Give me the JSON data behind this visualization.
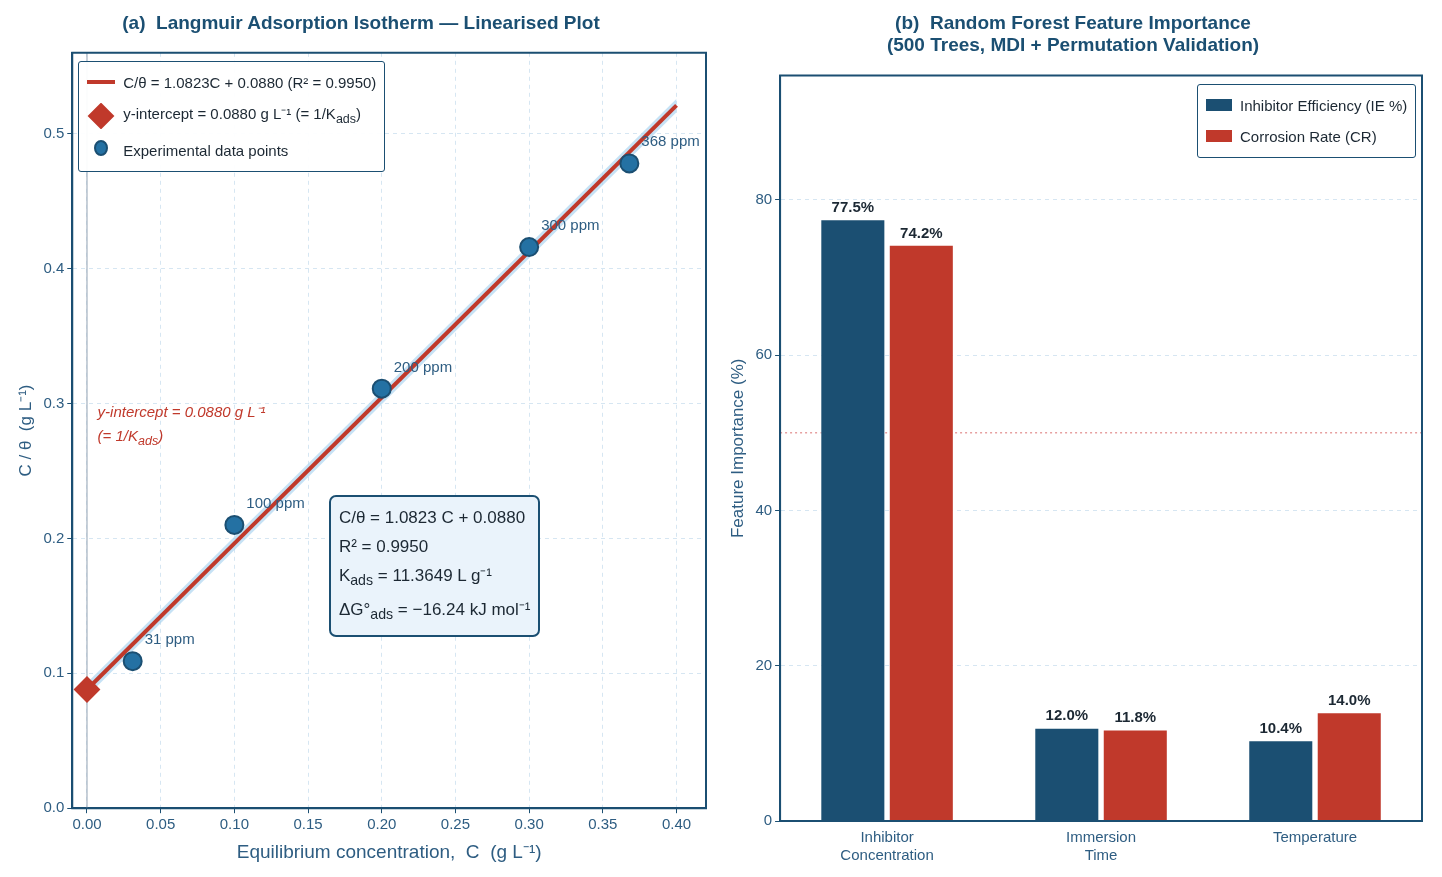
{
  "chart_data": [
    {
      "type": "scatter",
      "title": "(a)  Langmuir Adsorption Isotherm — Linearised Plot",
      "xlabel": "Equilibrium concentration,  C  (g L⁻¹)",
      "ylabel": "C / θ  (g L⁻¹)",
      "series": [
        {
          "name": "C/θ = 1.0823C + 0.0880   (R² = 0.9950)",
          "type": "line",
          "color": "#c0392b",
          "x": [
            0,
            0.4
          ],
          "values": [
            0.088,
            0.521
          ],
          "lower": [
            0.083,
            0.516
          ],
          "upper": [
            0.093,
            0.526
          ],
          "marker": "none"
        },
        {
          "name": "y-intercept = 0.0880 g L⁻¹  (= 1/K$_{ads}$)",
          "type": "scatter",
          "color": "#c0392b",
          "x": [
            0
          ],
          "values": [
            0.088
          ],
          "marker": "diamond"
        },
        {
          "name": "Experimental data points",
          "type": "scatter",
          "color": "#2471a3",
          "x": [
            0.031,
            0.1,
            0.2,
            0.3,
            0.368
          ],
          "values": [
            0.109,
            0.21,
            0.311,
            0.416,
            0.478
          ],
          "marker": "circle"
        }
      ],
      "xlim": [
        -0.01,
        0.42
      ],
      "ylim": [
        0,
        0.56
      ],
      "xticks": [
        {
          "value": 0,
          "label": "0.00"
        },
        0.05,
        {
          "value": 0.1,
          "label": "0.10"
        },
        0.15,
        {
          "value": 0.2,
          "label": "0.20"
        },
        0.25,
        {
          "value": 0.3,
          "label": "0.30"
        },
        0.35,
        {
          "value": 0.4,
          "label": "0.40"
        }
      ],
      "yticks": [
        {
          "value": 0,
          "label": "0.0"
        },
        0.1,
        0.2,
        0.3,
        0.4,
        0.5
      ],
      "grid": true,
      "legend": "top left",
      "ref_lines": [
        {
          "axis": "x",
          "value": 0,
          "color": "#aab7c4",
          "line_style": "solid"
        }
      ],
      "annotations": [
        {
          "text": "31 ppm",
          "x": 0.031,
          "y": 0.109
        },
        {
          "text": "100 ppm",
          "x": 0.1,
          "y": 0.21
        },
        {
          "text": "200 ppm",
          "x": 0.2,
          "y": 0.311
        },
        {
          "text": "300 ppm",
          "x": 0.3,
          "y": 0.416
        },
        {
          "text": "368 ppm",
          "x": 0.368,
          "y": 0.478
        },
        "y-intercept = 0.0880 g L⁻¹\n(= 1/K$_{ads}$)",
        "C/θ = 1.0823 C + 0.0880\nR² = 0.9950\nK$_{ads}$ = 11.3649 L g⁻¹\nΔG°$_{ads}$ = −16.24 kJ mol⁻¹"
      ]
    },
    {
      "type": "bar",
      "title": "(b)  Random Forest Feature Importance\n(500 Trees, MDI + Permutation Validation)",
      "ylabel": "Feature Importance (%)",
      "categories": [
        "Inhibitor Concentration",
        "Immersion Time",
        "Temperature"
      ],
      "series": [
        {
          "name": "Inhibitor Efficiency (IE %)",
          "color": "#1b4f72",
          "values": [
            77.5,
            12.0,
            10.4
          ],
          "value_labels": [
            "77.5%",
            "12.0%",
            "10.4%"
          ]
        },
        {
          "name": "Corrosion Rate (CR)",
          "color": "#c0392b",
          "values": [
            74.2,
            11.8,
            14.0
          ],
          "value_labels": [
            "74.2%",
            "11.8%",
            "14.0%"
          ]
        }
      ],
      "ylim": [
        0,
        96
      ],
      "yticks": [
        0,
        20,
        40,
        60,
        80
      ],
      "grid": "y",
      "legend": "top right",
      "ref_lines": [
        {
          "axis": "y",
          "value": 50,
          "color": "#e6a0a0",
          "line_style": "dotted"
        }
      ]
    }
  ]
}
